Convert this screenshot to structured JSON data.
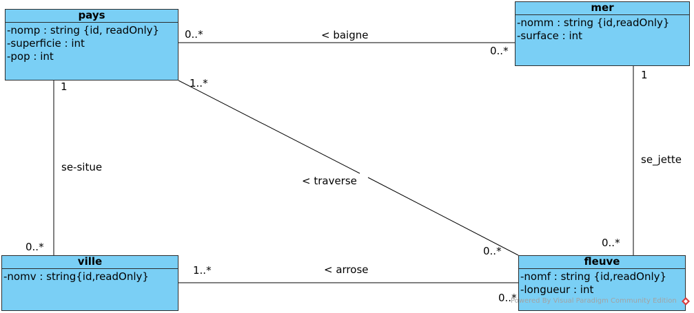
{
  "classes": {
    "pays": {
      "name": "pays",
      "attributes": [
        "-nomp : string {id, readOnly}",
        "-superficie : int",
        "-pop : int"
      ]
    },
    "mer": {
      "name": "mer",
      "attributes": [
        "-nomm : string {id,readOnly}",
        "-surface : int"
      ]
    },
    "ville": {
      "name": "ville",
      "attributes": [
        "-nomv : string{id,readOnly}"
      ]
    },
    "fleuve": {
      "name": "fleuve",
      "attributes": [
        "-nomf : string {id,readOnly}",
        "-longueur : int"
      ]
    }
  },
  "associations": {
    "baigne": {
      "label": "< baigne",
      "mult_pays": "0..*",
      "mult_mer": "0..*"
    },
    "situe": {
      "label": "se-situe",
      "mult_pays": "1",
      "mult_ville": "0..*"
    },
    "traverse": {
      "label": "< traverse",
      "mult_pays": "1..*",
      "mult_fleuve": "0..*"
    },
    "jette": {
      "label": "se_jette",
      "mult_mer": "1",
      "mult_fleuve": "0..*"
    },
    "arrose": {
      "label": "< arrose",
      "mult_ville": "1..*",
      "mult_fleuve": "0..*"
    }
  },
  "watermark": "Powered By Visual Paradigm Community Edition",
  "colors": {
    "class_fill": "#7acff5",
    "line": "#000000",
    "watermark": "#a3a3a3",
    "logo": "#d93a3a"
  }
}
